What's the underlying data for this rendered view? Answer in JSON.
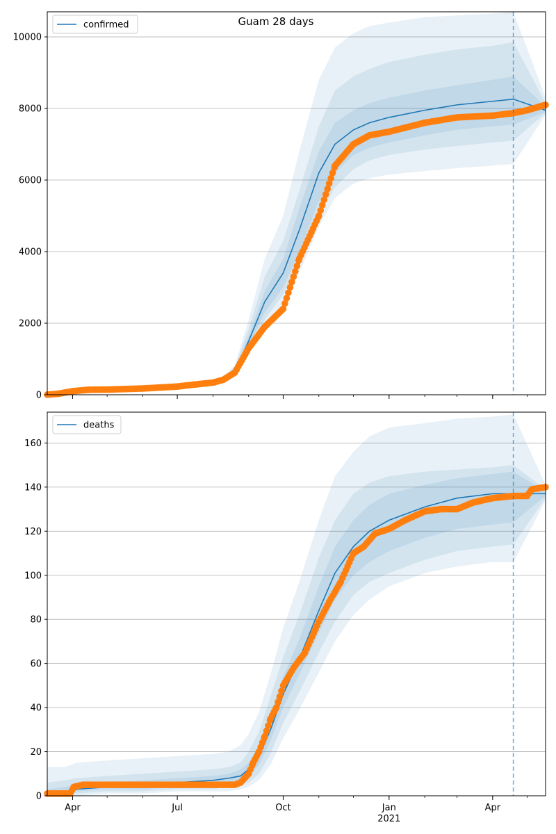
{
  "title": "Guam 28 days",
  "colors": {
    "line": "#1f77b4",
    "band": "#1f77b4",
    "observed": "#ff7f0e",
    "grid": "#b0b0b0",
    "vline": "#1f77b4"
  },
  "x_axis": {
    "range": [
      "2020-03-10",
      "2021-05-17"
    ],
    "ticks": [
      {
        "date": "2020-04-01",
        "label": "Apr",
        "sublabel": ""
      },
      {
        "date": "2020-07-01",
        "label": "Jul",
        "sublabel": ""
      },
      {
        "date": "2020-10-01",
        "label": "Oct",
        "sublabel": ""
      },
      {
        "date": "2021-01-01",
        "label": "Jan",
        "sublabel": "2021"
      },
      {
        "date": "2021-04-01",
        "label": "Apr",
        "sublabel": ""
      }
    ],
    "forecast_start": "2021-04-19"
  },
  "chart_data": [
    {
      "type": "line",
      "legend": "confirmed",
      "legend_position": "top-left",
      "ylim": [
        0,
        10700
      ],
      "yticks": [
        0,
        2000,
        4000,
        6000,
        8000,
        10000
      ],
      "grid": "horizontal",
      "x": [
        "2020-03-10",
        "2020-03-20",
        "2020-04-01",
        "2020-04-15",
        "2020-05-01",
        "2020-06-01",
        "2020-07-01",
        "2020-07-20",
        "2020-08-01",
        "2020-08-10",
        "2020-08-20",
        "2020-09-01",
        "2020-09-15",
        "2020-10-01",
        "2020-10-15",
        "2020-11-01",
        "2020-11-15",
        "2020-12-01",
        "2020-12-15",
        "2021-01-01",
        "2021-02-01",
        "2021-03-01",
        "2021-04-01",
        "2021-04-19",
        "2021-05-17"
      ],
      "median": [
        0,
        20,
        100,
        150,
        160,
        180,
        230,
        310,
        360,
        430,
        650,
        1500,
        2600,
        3400,
        4600,
        6200,
        7000,
        7400,
        7600,
        7750,
        7950,
        8100,
        8200,
        8260,
        7950
      ],
      "bands": [
        {
          "low": [
            0,
            15,
            80,
            130,
            140,
            160,
            210,
            290,
            330,
            390,
            580,
            1350,
            2300,
            3000,
            4000,
            5400,
            6200,
            6700,
            6900,
            7050,
            7250,
            7400,
            7500,
            7550,
            7900
          ],
          "high": [
            0,
            25,
            120,
            170,
            180,
            200,
            250,
            330,
            390,
            470,
            720,
            1650,
            2900,
            3800,
            5200,
            6800,
            7600,
            7950,
            8150,
            8300,
            8500,
            8650,
            8800,
            8900,
            8050
          ]
        },
        {
          "low": [
            0,
            12,
            70,
            120,
            130,
            150,
            200,
            280,
            320,
            370,
            540,
            1200,
            2100,
            2800,
            3700,
            5000,
            5800,
            6300,
            6550,
            6700,
            6850,
            6950,
            7050,
            7100,
            7870
          ],
          "high": [
            0,
            28,
            130,
            180,
            190,
            210,
            260,
            340,
            400,
            490,
            780,
            1850,
            3300,
            4300,
            5700,
            7500,
            8500,
            8900,
            9100,
            9300,
            9500,
            9650,
            9750,
            9850,
            8150
          ]
        },
        {
          "low": [
            0,
            10,
            60,
            110,
            120,
            140,
            190,
            270,
            310,
            360,
            500,
            1100,
            1900,
            2500,
            3400,
            4700,
            5500,
            5900,
            6050,
            6150,
            6250,
            6330,
            6400,
            6450,
            7820
          ],
          "high": [
            0,
            30,
            140,
            190,
            200,
            220,
            270,
            350,
            410,
            510,
            820,
            2100,
            3800,
            5000,
            6800,
            8800,
            9700,
            10100,
            10300,
            10400,
            10550,
            10600,
            10650,
            10700,
            8300
          ]
        }
      ],
      "observed": {
        "x": [
          "2020-03-10",
          "2020-03-20",
          "2020-04-01",
          "2020-04-15",
          "2020-05-01",
          "2020-06-01",
          "2020-07-01",
          "2020-07-20",
          "2020-08-01",
          "2020-08-10",
          "2020-08-20",
          "2020-09-01",
          "2020-09-15",
          "2020-10-01",
          "2020-10-15",
          "2020-11-01",
          "2020-11-15",
          "2020-12-01",
          "2020-12-15",
          "2021-01-01",
          "2021-02-01",
          "2021-03-01",
          "2021-04-01",
          "2021-04-19",
          "2021-05-01",
          "2021-05-17"
        ],
        "y": [
          3,
          30,
          100,
          140,
          145,
          175,
          230,
          300,
          340,
          420,
          620,
          1300,
          1900,
          2400,
          3800,
          5000,
          6400,
          7000,
          7250,
          7350,
          7600,
          7750,
          7800,
          7870,
          7950,
          8100
        ]
      }
    },
    {
      "type": "line",
      "legend": "deaths",
      "legend_position": "top-left",
      "ylim": [
        0,
        174
      ],
      "yticks": [
        0,
        20,
        40,
        60,
        80,
        100,
        120,
        140,
        160
      ],
      "grid": "horizontal",
      "x": [
        "2020-03-10",
        "2020-03-25",
        "2020-04-05",
        "2020-05-01",
        "2020-06-01",
        "2020-07-01",
        "2020-08-01",
        "2020-08-15",
        "2020-08-25",
        "2020-09-01",
        "2020-09-10",
        "2020-09-20",
        "2020-10-01",
        "2020-10-15",
        "2020-11-01",
        "2020-11-15",
        "2020-12-01",
        "2020-12-15",
        "2021-01-01",
        "2021-02-01",
        "2021-03-01",
        "2021-04-01",
        "2021-04-19",
        "2021-05-17"
      ],
      "median": [
        1,
        1,
        3,
        4,
        5,
        6,
        7,
        8,
        9,
        12,
        18,
        30,
        46,
        62,
        84,
        101,
        113,
        120,
        125,
        131,
        135,
        137,
        137,
        137
      ],
      "bands": [
        {
          "low": [
            1,
            1,
            2,
            3,
            3,
            4,
            5,
            6,
            7,
            9,
            14,
            25,
            40,
            55,
            74,
            89,
            100,
            106,
            111,
            117,
            121,
            123,
            124,
            136
          ],
          "high": [
            3,
            4,
            5,
            6,
            7,
            8,
            9,
            10,
            12,
            15,
            23,
            37,
            54,
            71,
            95,
            113,
            125,
            132,
            137,
            141,
            144,
            146,
            147,
            138
          ]
        },
        {
          "low": [
            0,
            0,
            1,
            2,
            2,
            3,
            3,
            4,
            5,
            6,
            10,
            19,
            33,
            47,
            65,
            79,
            91,
            97,
            101,
            107,
            111,
            113,
            114,
            135
          ],
          "high": [
            6,
            7,
            8,
            9,
            10,
            11,
            12,
            13,
            15,
            20,
            29,
            45,
            63,
            82,
            108,
            125,
            137,
            142,
            145,
            147,
            148,
            149,
            150,
            139
          ]
        },
        {
          "low": [
            0,
            0,
            0,
            1,
            1,
            2,
            2,
            2,
            3,
            4,
            7,
            14,
            26,
            39,
            56,
            70,
            82,
            89,
            95,
            101,
            104,
            106,
            106,
            134
          ],
          "high": [
            13,
            13,
            15,
            16,
            17,
            18,
            19,
            20,
            23,
            28,
            38,
            55,
            76,
            97,
            125,
            145,
            156,
            163,
            167,
            169,
            171,
            172,
            173,
            141
          ]
        }
      ],
      "observed": {
        "x": [
          "2020-03-10",
          "2020-03-30",
          "2020-04-02",
          "2020-04-10",
          "2020-05-01",
          "2020-06-01",
          "2020-07-01",
          "2020-08-01",
          "2020-08-20",
          "2020-08-25",
          "2020-09-01",
          "2020-09-05",
          "2020-09-10",
          "2020-09-15",
          "2020-09-20",
          "2020-09-25",
          "2020-10-01",
          "2020-10-10",
          "2020-10-20",
          "2020-11-01",
          "2020-11-10",
          "2020-11-20",
          "2020-12-01",
          "2020-12-10",
          "2020-12-20",
          "2021-01-01",
          "2021-01-15",
          "2021-02-01",
          "2021-02-15",
          "2021-03-01",
          "2021-03-15",
          "2021-04-01",
          "2021-04-19",
          "2021-05-01",
          "2021-05-05",
          "2021-05-17"
        ],
        "y": [
          1,
          1,
          4,
          5,
          5,
          5,
          5,
          5,
          5,
          6,
          10,
          15,
          20,
          27,
          35,
          40,
          50,
          58,
          65,
          79,
          88,
          97,
          110,
          113,
          119,
          121,
          125,
          129,
          130,
          130,
          133,
          135,
          136,
          136,
          139,
          140
        ]
      }
    }
  ]
}
